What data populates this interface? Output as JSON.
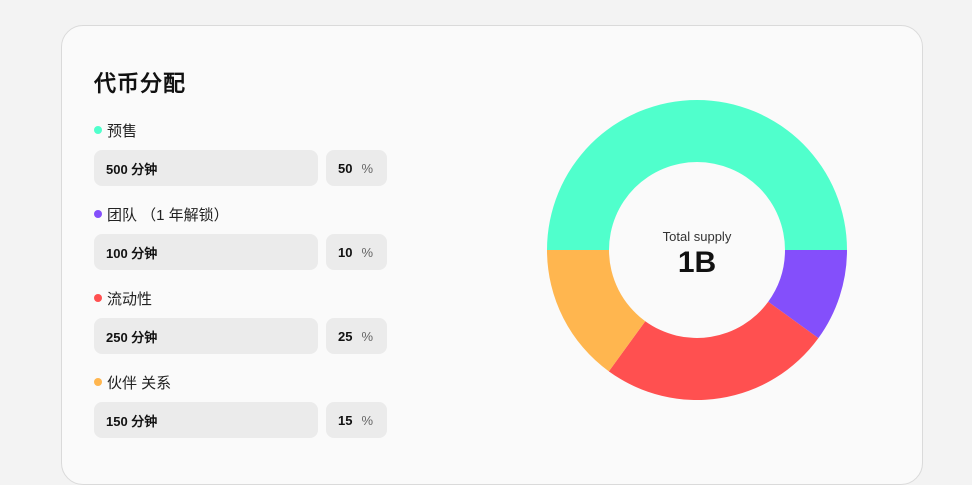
{
  "title": "代币分配",
  "items": [
    {
      "label": "预售",
      "amount": "500 分钟",
      "percent": "50",
      "unit": "%",
      "color": "#50ffcc"
    },
    {
      "label": "团队 （1 年解锁）",
      "amount": "100 分钟",
      "percent": "10",
      "unit": "%",
      "color": "#844ffb"
    },
    {
      "label": "流动性",
      "amount": "250 分钟",
      "percent": "25",
      "unit": "%",
      "color": "#ff5050"
    },
    {
      "label": "伙伴 关系",
      "amount": "150 分钟",
      "percent": "15",
      "unit": "%",
      "color": "#ffb64f"
    }
  ],
  "chart_data": {
    "type": "pie",
    "categories": [
      "预售",
      "团队 （1 年解锁）",
      "流动性",
      "伙伴 关系"
    ],
    "values": [
      50,
      10,
      25,
      15
    ],
    "colors": [
      "#50ffcc",
      "#844ffb",
      "#ff5050",
      "#ffb64f"
    ],
    "center_label": "Total supply",
    "center_value": "1B"
  }
}
